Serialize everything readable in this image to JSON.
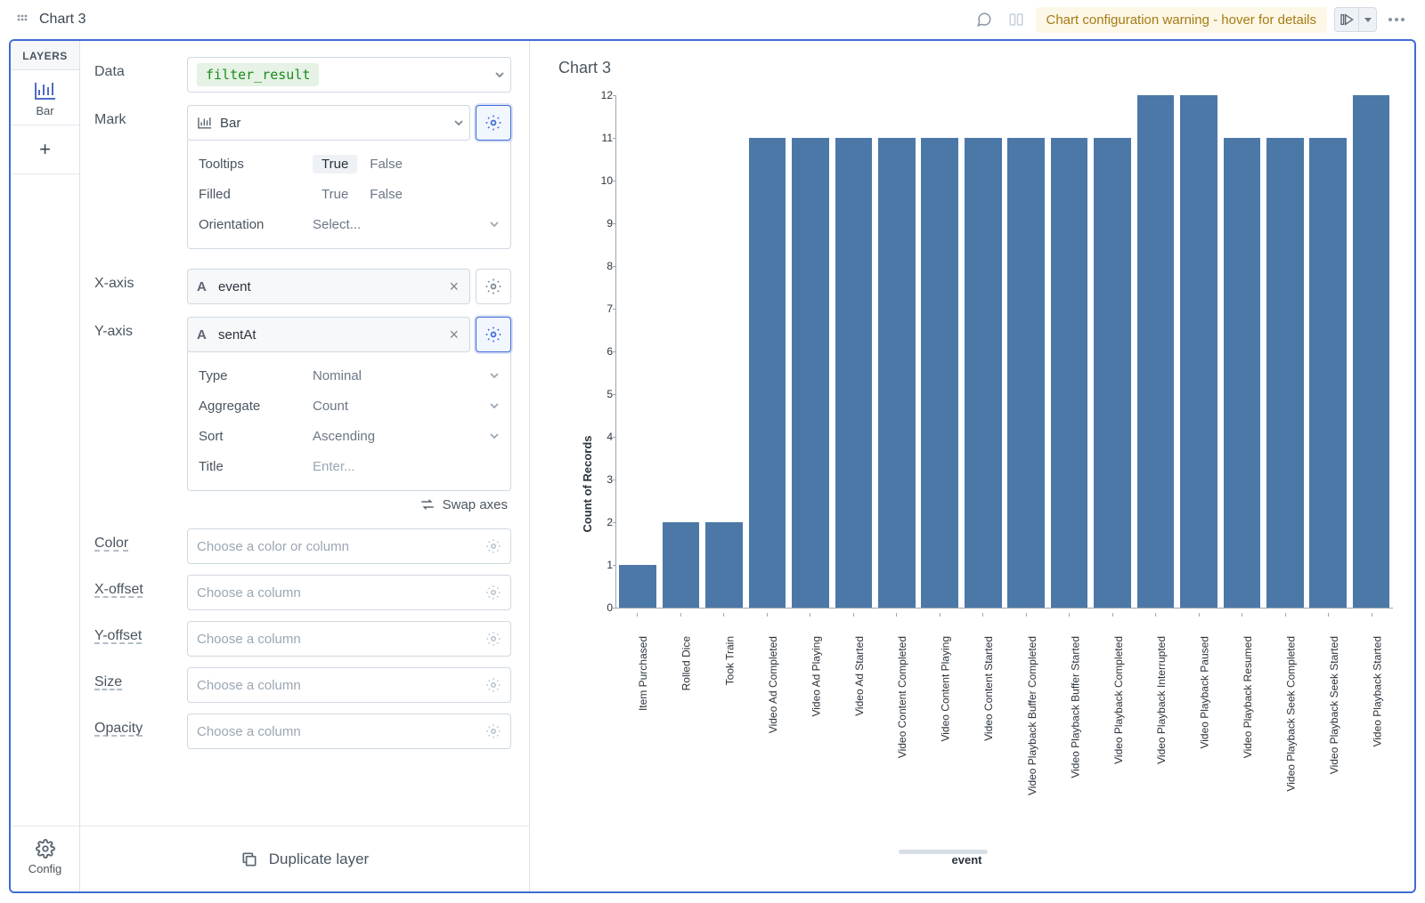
{
  "header": {
    "title": "Chart 3",
    "warning": "Chart configuration warning - hover for details"
  },
  "layers": {
    "title": "LAYERS",
    "items": [
      {
        "label": "Bar"
      }
    ],
    "config_label": "Config"
  },
  "form": {
    "sections": {
      "data": {
        "label": "Data",
        "value": "filter_result"
      },
      "mark": {
        "label": "Mark",
        "value": "Bar",
        "sub": {
          "tooltips": {
            "label": "Tooltips",
            "opts": [
              "True",
              "False"
            ],
            "selected": 0
          },
          "filled": {
            "label": "Filled",
            "opts": [
              "True",
              "False"
            ],
            "selected": -1
          },
          "orientation": {
            "label": "Orientation",
            "placeholder": "Select..."
          }
        }
      },
      "xaxis": {
        "label": "X-axis",
        "field": "event"
      },
      "yaxis": {
        "label": "Y-axis",
        "field": "sentAt",
        "sub": {
          "type": {
            "label": "Type",
            "value": "Nominal"
          },
          "aggregate": {
            "label": "Aggregate",
            "value": "Count"
          },
          "sort": {
            "label": "Sort",
            "value": "Ascending"
          },
          "title": {
            "label": "Title",
            "placeholder": "Enter..."
          }
        }
      },
      "swap": "Swap axes",
      "extra": [
        {
          "label": "Color",
          "placeholder": "Choose a color or column"
        },
        {
          "label": "X-offset",
          "placeholder": "Choose a column"
        },
        {
          "label": "Y-offset",
          "placeholder": "Choose a column"
        },
        {
          "label": "Size",
          "placeholder": "Choose a column"
        },
        {
          "label": "Opacity",
          "placeholder": "Choose a column"
        }
      ],
      "dup": "Duplicate layer"
    }
  },
  "chart": {
    "type": "bar",
    "title": "Chart 3",
    "y_title": "Count of Records",
    "x_title": "event",
    "ylim": [
      0,
      12
    ],
    "ytick_step": 1,
    "bar_color": "#4c78a8",
    "axis_color": "#9aa7b3",
    "background": "#ffffff",
    "categories": [
      "Item Purchased",
      "Rolled Dice",
      "Took Train",
      "Video Ad Completed",
      "Video Ad Playing",
      "Video Ad Started",
      "Video Content Completed",
      "Video Content Playing",
      "Video Content Started",
      "Video Playback Buffer Completed",
      "Video Playback Buffer Started",
      "Video Playback Completed",
      "Video Playback Interrupted",
      "Video Playback Paused",
      "Video Playback Resumed",
      "Video Playback Seek Completed",
      "Video Playback Seek Started",
      "Video Playback Started"
    ],
    "values": [
      1,
      2,
      2,
      11,
      11,
      11,
      11,
      11,
      11,
      11,
      11,
      11,
      12,
      12,
      11,
      11,
      11,
      12
    ]
  }
}
